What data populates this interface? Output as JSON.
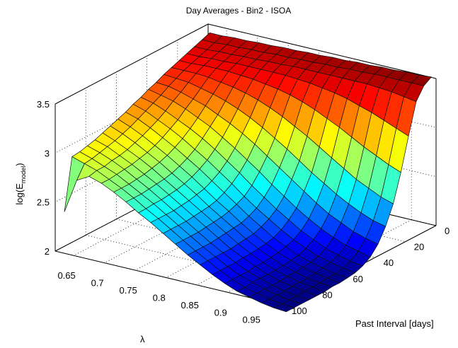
{
  "chart_data": {
    "type": "surface",
    "title": "Day Averages - Bin2 - ISOA",
    "xlabel": "λ",
    "ylabel": "Past Interval [days]",
    "zlabel_main": "log(E",
    "zlabel_sub": "model",
    "zlabel_end": ")",
    "xlim": [
      0.62,
      0.99
    ],
    "ylim": [
      0,
      100
    ],
    "zlim": [
      2,
      3.5
    ],
    "x_ticks": [
      0.65,
      0.7,
      0.75,
      0.8,
      0.85,
      0.9,
      0.95
    ],
    "x_tick_labels": [
      "0.65",
      "0.7",
      "0.75",
      "0.8",
      "0.85",
      "0.9",
      "0.95"
    ],
    "y_ticks": [
      0,
      20,
      40,
      60,
      80,
      100
    ],
    "y_tick_labels": [
      "0",
      "20",
      "40",
      "60",
      "80",
      "100"
    ],
    "z_ticks": [
      2,
      2.5,
      3,
      3.5
    ],
    "z_tick_labels": [
      "2",
      "2.5",
      "3",
      "3.5"
    ],
    "grid": true,
    "colormap": "jet",
    "lambda": [
      0.63,
      0.65,
      0.67,
      0.69,
      0.71,
      0.73,
      0.75,
      0.77,
      0.79,
      0.81,
      0.83,
      0.85,
      0.87,
      0.89,
      0.91,
      0.93,
      0.95,
      0.97,
      0.99
    ],
    "past_interval": [
      3,
      8,
      13,
      18,
      23,
      28,
      33,
      38,
      43,
      48,
      53,
      58,
      63,
      68,
      73,
      78,
      83,
      88,
      93,
      98
    ],
    "z": [
      [
        3.45,
        3.45,
        3.46,
        3.46,
        3.47,
        3.47,
        3.48,
        3.48,
        3.49,
        3.49,
        3.5,
        3.5,
        3.51,
        3.51,
        3.52,
        3.52,
        3.53,
        3.53,
        3.54
      ],
      [
        3.42,
        3.42,
        3.43,
        3.43,
        3.44,
        3.44,
        3.45,
        3.45,
        3.46,
        3.46,
        3.47,
        3.47,
        3.48,
        3.48,
        3.49,
        3.49,
        3.49,
        3.49,
        3.49
      ],
      [
        3.39,
        3.39,
        3.4,
        3.4,
        3.41,
        3.41,
        3.42,
        3.42,
        3.43,
        3.43,
        3.43,
        3.43,
        3.43,
        3.43,
        3.43,
        3.42,
        3.41,
        3.39,
        3.37
      ],
      [
        3.36,
        3.36,
        3.37,
        3.37,
        3.38,
        3.38,
        3.38,
        3.38,
        3.38,
        3.37,
        3.36,
        3.34,
        3.32,
        3.29,
        3.25,
        3.21,
        3.16,
        3.11,
        3.06
      ],
      [
        3.33,
        3.33,
        3.34,
        3.34,
        3.34,
        3.33,
        3.32,
        3.3,
        3.28,
        3.25,
        3.21,
        3.16,
        3.1,
        3.04,
        2.97,
        2.9,
        2.84,
        2.78,
        2.73
      ],
      [
        3.3,
        3.3,
        3.3,
        3.29,
        3.27,
        3.25,
        3.22,
        3.18,
        3.13,
        3.07,
        3.0,
        2.93,
        2.85,
        2.77,
        2.69,
        2.61,
        2.55,
        2.49,
        2.45
      ],
      [
        3.27,
        3.26,
        3.25,
        3.22,
        3.19,
        3.15,
        3.1,
        3.04,
        2.97,
        2.89,
        2.81,
        2.72,
        2.63,
        2.55,
        2.47,
        2.4,
        2.34,
        2.29,
        2.26
      ],
      [
        3.23,
        3.22,
        3.19,
        3.15,
        3.11,
        3.05,
        2.99,
        2.92,
        2.84,
        2.75,
        2.66,
        2.57,
        2.48,
        2.39,
        2.31,
        2.25,
        2.19,
        2.15,
        2.12
      ],
      [
        3.2,
        3.17,
        3.14,
        3.09,
        3.03,
        2.97,
        2.89,
        2.81,
        2.72,
        2.63,
        2.53,
        2.44,
        2.35,
        2.27,
        2.2,
        2.14,
        2.09,
        2.06,
        2.03
      ],
      [
        3.16,
        3.13,
        3.08,
        3.02,
        2.96,
        2.89,
        2.81,
        2.72,
        2.63,
        2.53,
        2.44,
        2.35,
        2.27,
        2.19,
        2.13,
        2.07,
        2.03,
        2.0,
        1.98
      ],
      [
        3.13,
        3.09,
        3.03,
        2.97,
        2.9,
        2.82,
        2.74,
        2.65,
        2.56,
        2.46,
        2.37,
        2.29,
        2.21,
        2.14,
        2.08,
        2.03,
        2.0,
        1.97,
        1.95
      ],
      [
        3.09,
        3.05,
        2.99,
        2.92,
        2.85,
        2.77,
        2.69,
        2.6,
        2.51,
        2.42,
        2.33,
        2.25,
        2.17,
        2.11,
        2.05,
        2.01,
        1.98,
        1.95,
        1.94
      ],
      [
        3.06,
        3.01,
        2.95,
        2.88,
        2.81,
        2.73,
        2.65,
        2.56,
        2.47,
        2.39,
        2.3,
        2.22,
        2.15,
        2.09,
        2.04,
        2.0,
        1.97,
        1.95,
        1.93
      ],
      [
        3.03,
        2.98,
        2.92,
        2.85,
        2.78,
        2.7,
        2.62,
        2.54,
        2.45,
        2.37,
        2.29,
        2.21,
        2.14,
        2.08,
        2.03,
        1.99,
        1.96,
        1.94,
        1.93
      ],
      [
        3.0,
        2.95,
        2.89,
        2.83,
        2.76,
        2.68,
        2.6,
        2.52,
        2.44,
        2.36,
        2.28,
        2.2,
        2.13,
        2.07,
        2.02,
        1.99,
        1.96,
        1.94,
        1.92
      ],
      [
        2.97,
        2.93,
        2.87,
        2.81,
        2.74,
        2.67,
        2.59,
        2.51,
        2.43,
        2.35,
        2.27,
        2.19,
        2.13,
        2.07,
        2.02,
        1.98,
        1.96,
        1.94,
        1.92
      ],
      [
        2.95,
        2.91,
        2.86,
        2.8,
        2.73,
        2.66,
        2.58,
        2.5,
        2.42,
        2.34,
        2.26,
        2.19,
        2.12,
        2.06,
        2.02,
        1.98,
        1.95,
        1.93,
        1.92
      ],
      [
        2.93,
        2.89,
        2.84,
        2.79,
        2.72,
        2.65,
        2.58,
        2.5,
        2.42,
        2.34,
        2.26,
        2.19,
        2.12,
        2.06,
        2.02,
        1.98,
        1.95,
        1.93,
        1.92
      ],
      [
        2.92,
        2.88,
        2.84,
        2.78,
        2.72,
        2.65,
        2.57,
        2.5,
        2.42,
        2.34,
        2.26,
        2.19,
        2.12,
        2.06,
        2.01,
        1.98,
        1.95,
        1.93,
        1.92
      ],
      [
        2.4,
        2.75,
        2.82,
        2.78,
        2.72,
        2.65,
        2.57,
        2.5,
        2.42,
        2.34,
        2.26,
        2.19,
        2.12,
        2.06,
        2.01,
        1.98,
        1.95,
        1.93,
        1.92
      ]
    ]
  }
}
